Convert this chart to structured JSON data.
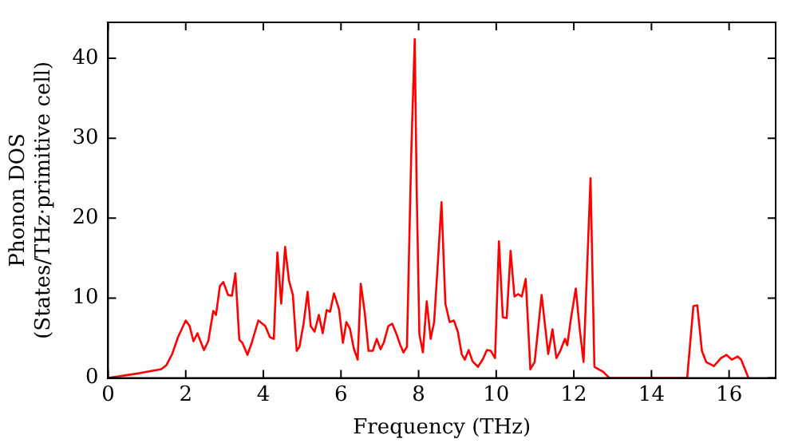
{
  "chart_data": {
    "type": "line",
    "xlabel": "Frequency (THz)",
    "ylabel": "Phonon DOS\n(States/THz·primitive cell)",
    "xlim": [
      0,
      17.2
    ],
    "ylim": [
      0,
      44.5
    ],
    "xticks": [
      0,
      2,
      4,
      6,
      8,
      10,
      12,
      14,
      16
    ],
    "yticks": [
      0,
      10,
      20,
      30,
      40
    ],
    "grid": false,
    "legend": false,
    "marker": "none",
    "line_style": "solid",
    "series": [
      {
        "color": "#ff0000",
        "x": [
          0,
          0.8,
          1.37,
          1.5,
          1.65,
          1.8,
          2.0,
          2.1,
          2.2,
          2.3,
          2.47,
          2.58,
          2.71,
          2.78,
          2.88,
          2.97,
          3.09,
          3.19,
          3.28,
          3.38,
          3.46,
          3.59,
          3.7,
          3.87,
          4.05,
          4.17,
          4.27,
          4.36,
          4.46,
          4.56,
          4.66,
          4.76,
          4.86,
          4.93,
          5.04,
          5.14,
          5.22,
          5.32,
          5.43,
          5.53,
          5.63,
          5.72,
          5.82,
          5.95,
          6.05,
          6.14,
          6.23,
          6.33,
          6.43,
          6.51,
          6.61,
          6.71,
          6.82,
          6.92,
          7.02,
          7.1,
          7.22,
          7.32,
          7.43,
          7.53,
          7.61,
          7.7,
          7.81,
          7.9,
          7.95,
          8.02,
          8.11,
          8.21,
          8.31,
          8.4,
          8.49,
          8.59,
          8.69,
          8.8,
          8.91,
          9.01,
          9.11,
          9.19,
          9.29,
          9.39,
          9.53,
          9.65,
          9.76,
          9.86,
          9.97,
          10.07,
          10.17,
          10.27,
          10.37,
          10.47,
          10.56,
          10.66,
          10.76,
          10.88,
          10.99,
          11.17,
          11.34,
          11.45,
          11.55,
          11.65,
          11.77,
          11.83,
          11.93,
          12.05,
          12.15,
          12.25,
          12.43,
          12.53,
          12.75,
          12.92,
          14.92,
          15.08,
          15.18,
          15.3,
          15.41,
          15.61,
          15.79,
          15.93,
          16.07,
          16.22,
          16.31,
          16.5
        ],
        "values": [
          0,
          0.6,
          1.1,
          1.6,
          3.0,
          5.1,
          7.2,
          6.5,
          4.6,
          5.6,
          3.5,
          4.6,
          8.4,
          7.9,
          11.5,
          12.0,
          10.4,
          10.3,
          13.1,
          4.8,
          4.4,
          2.9,
          4.4,
          7.2,
          6.5,
          5.1,
          4.9,
          15.7,
          9.3,
          16.4,
          12.2,
          10.4,
          3.4,
          3.9,
          6.9,
          10.8,
          6.5,
          5.8,
          7.9,
          5.6,
          8.5,
          8.3,
          10.6,
          8.6,
          4.4,
          7.0,
          6.2,
          3.7,
          2.3,
          11.8,
          8.3,
          3.4,
          3.4,
          4.9,
          3.6,
          4.4,
          6.5,
          6.8,
          5.5,
          4.1,
          3.2,
          3.9,
          28,
          42.4,
          23.8,
          5.5,
          3.2,
          9.6,
          4.9,
          7.0,
          13.9,
          22.0,
          9.3,
          7.0,
          7.2,
          5.8,
          3.0,
          2.3,
          3.5,
          2.1,
          1.4,
          2.3,
          3.5,
          3.4,
          2.5,
          17.1,
          7.6,
          7.5,
          15.9,
          10.2,
          10.5,
          10.2,
          12.4,
          1.1,
          2.0,
          10.4,
          3.0,
          6.1,
          2.5,
          3.4,
          4.9,
          4.1,
          7.6,
          11.2,
          6.2,
          2.0,
          25.0,
          1.4,
          0.8,
          0,
          0,
          9.0,
          9.1,
          3.4,
          2.0,
          1.5,
          2.5,
          2.9,
          2.3,
          2.7,
          2.3,
          0
        ]
      }
    ]
  }
}
